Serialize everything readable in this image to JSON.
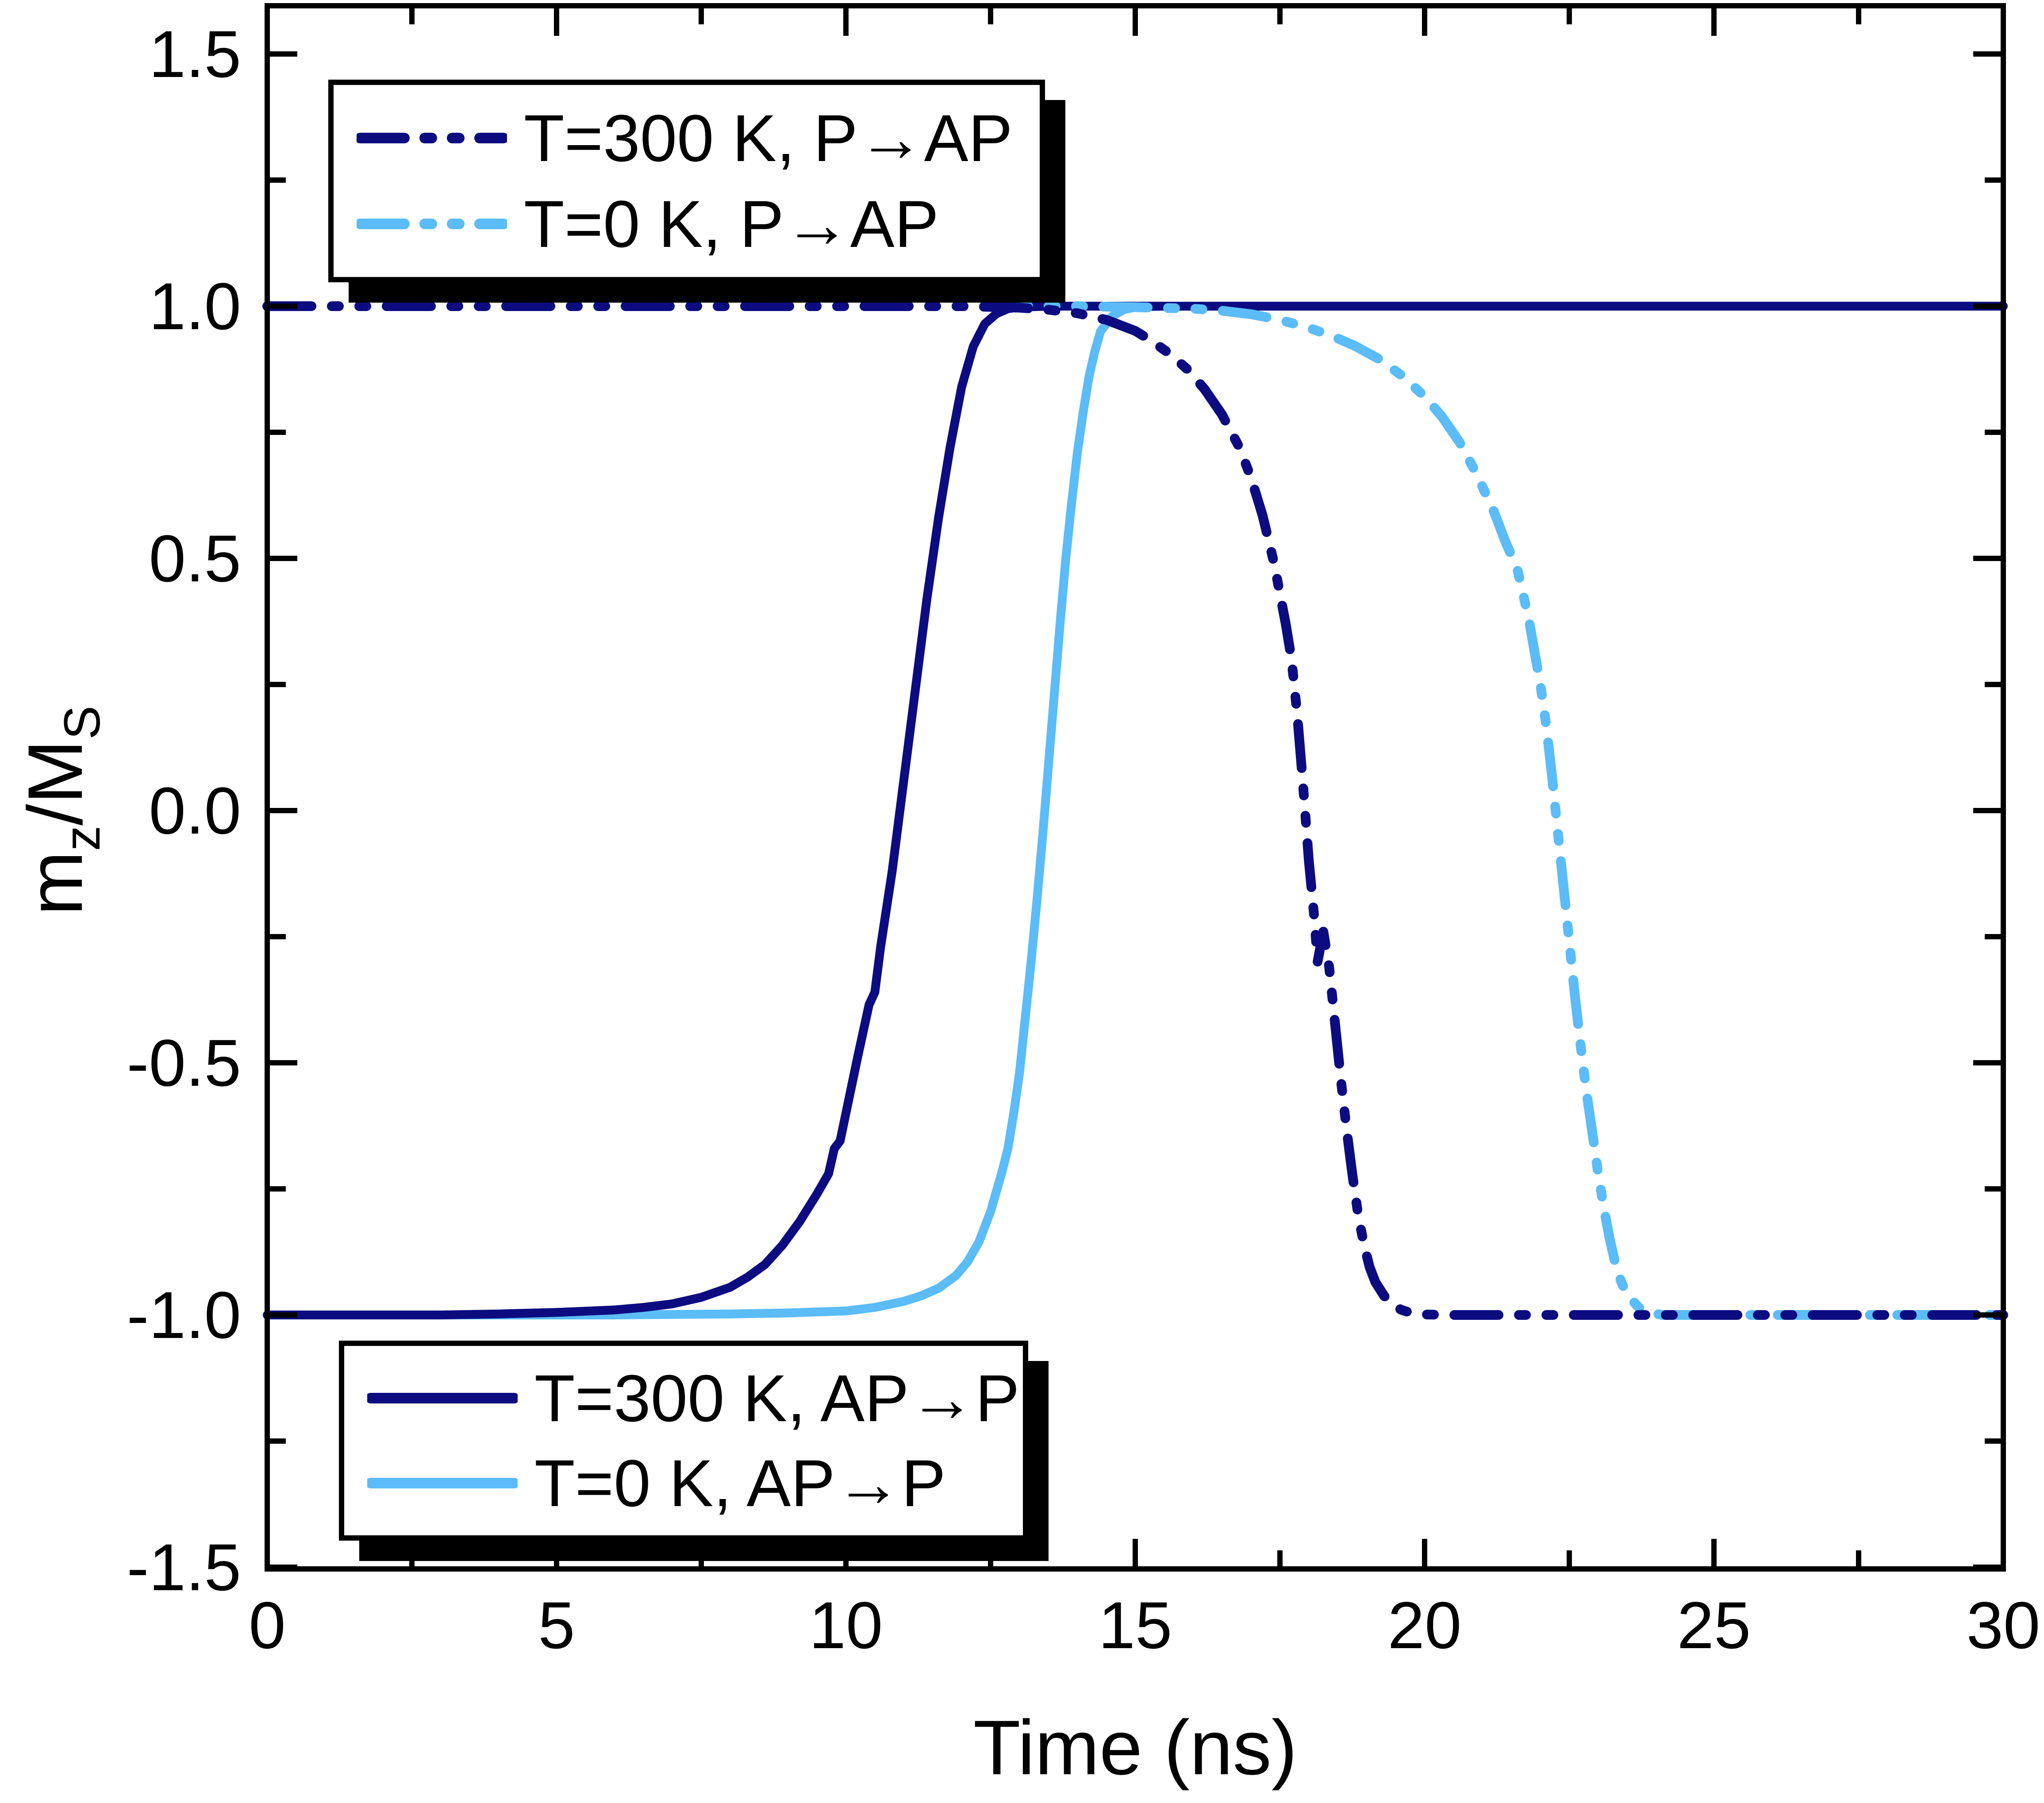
{
  "figure": {
    "background": "#ffffff"
  },
  "chart_data": {
    "type": "line",
    "title": "",
    "xlabel": "Time (ns)",
    "ylabel": "mz/MS",
    "ylabel_parts": [
      [
        "m",
        false
      ],
      [
        "z",
        true
      ],
      [
        "/M",
        false
      ],
      [
        "S",
        true
      ]
    ],
    "xlim": [
      0,
      30
    ],
    "ylim": [
      -1.5,
      1.5
    ],
    "grid": false,
    "legend_position": [
      "upper-left-inside",
      "lower-left-inside"
    ],
    "x_ticks": [
      0,
      5,
      10,
      15,
      20,
      25,
      30
    ],
    "x_tick_labels": [
      "0",
      "5",
      "10",
      "15",
      "20",
      "25",
      "30"
    ],
    "x_minor_ticks": [
      2.5,
      7.5,
      12.5,
      17.5,
      22.5,
      27.5
    ],
    "y_ticks": [
      1.5,
      1.0,
      0.5,
      0.0,
      -0.5,
      -1.0,
      -1.5
    ],
    "y_tick_labels": [
      "1.5",
      "1.0",
      "0.5",
      "0.0",
      "-0.5",
      "-1.0",
      "-1.5"
    ],
    "y_minor_ticks": [
      1.25,
      0.75,
      0.25,
      -0.25,
      -0.75,
      -1.25
    ],
    "colors": {
      "navy": "#0c0c80",
      "light_blue": "#5bbcf7",
      "axis": "#000000"
    },
    "legend_top": {
      "items": [
        {
          "label": "T=300 K, P→AP",
          "series": 0
        },
        {
          "label": "T=0 K, P→AP",
          "series": 1
        }
      ]
    },
    "legend_bottom": {
      "items": [
        {
          "label": "T=300 K, AP→P",
          "series": 2
        },
        {
          "label": "T=0 K, AP→P",
          "series": 3
        }
      ]
    },
    "series": [
      {
        "name": "T=300 K, P→AP",
        "color": "navy",
        "style": "dash-dot-dot",
        "points": [
          [
            0,
            1.0
          ],
          [
            4,
            1.0
          ],
          [
            8,
            1.0
          ],
          [
            10,
            1.0
          ],
          [
            12,
            1.0
          ],
          [
            13,
            0.997
          ],
          [
            13.5,
            0.993
          ],
          [
            14,
            0.986
          ],
          [
            14.5,
            0.973
          ],
          [
            15,
            0.951
          ],
          [
            15.3,
            0.93
          ],
          [
            15.6,
            0.905
          ],
          [
            15.9,
            0.875
          ],
          [
            16.2,
            0.835
          ],
          [
            16.5,
            0.785
          ],
          [
            16.8,
            0.72
          ],
          [
            17.0,
            0.66
          ],
          [
            17.2,
            0.585
          ],
          [
            17.4,
            0.49
          ],
          [
            17.6,
            0.37
          ],
          [
            17.7,
            0.3
          ],
          [
            17.8,
            0.19
          ],
          [
            17.9,
            0.05
          ],
          [
            18.0,
            -0.1
          ],
          [
            18.1,
            -0.22
          ],
          [
            18.15,
            -0.3
          ],
          [
            18.25,
            -0.24
          ],
          [
            18.35,
            -0.31
          ],
          [
            18.45,
            -0.42
          ],
          [
            18.55,
            -0.53
          ],
          [
            18.65,
            -0.63
          ],
          [
            18.75,
            -0.72
          ],
          [
            18.85,
            -0.8
          ],
          [
            18.95,
            -0.86
          ],
          [
            19.05,
            -0.905
          ],
          [
            19.15,
            -0.935
          ],
          [
            19.3,
            -0.962
          ],
          [
            19.45,
            -0.98
          ],
          [
            19.6,
            -0.99
          ],
          [
            19.8,
            -0.997
          ],
          [
            20,
            -0.999
          ],
          [
            20.5,
            -1.0
          ],
          [
            22,
            -1.0
          ],
          [
            25,
            -1.0
          ],
          [
            28,
            -1.0
          ],
          [
            30,
            -1.0
          ]
        ]
      },
      {
        "name": "T=0 K, P→AP",
        "color": "light_blue",
        "style": "dash-dot-dot",
        "points": [
          [
            0,
            1.0
          ],
          [
            4,
            1.0
          ],
          [
            8,
            1.0
          ],
          [
            12,
            1.0
          ],
          [
            14,
            1.0
          ],
          [
            15,
            0.998
          ],
          [
            16,
            0.995
          ],
          [
            16.5,
            0.991
          ],
          [
            17,
            0.984
          ],
          [
            17.5,
            0.973
          ],
          [
            18,
            0.957
          ],
          [
            18.4,
            0.941
          ],
          [
            18.8,
            0.921
          ],
          [
            19.2,
            0.896
          ],
          [
            19.6,
            0.863
          ],
          [
            20.0,
            0.821
          ],
          [
            20.3,
            0.781
          ],
          [
            20.6,
            0.731
          ],
          [
            20.9,
            0.667
          ],
          [
            21.2,
            0.592
          ],
          [
            21.4,
            0.532
          ],
          [
            21.6,
            0.48
          ],
          [
            21.8,
            0.38
          ],
          [
            22.0,
            0.25
          ],
          [
            22.1,
            0.17
          ],
          [
            22.2,
            0.07
          ],
          [
            22.3,
            -0.04
          ],
          [
            22.4,
            -0.15
          ],
          [
            22.5,
            -0.26
          ],
          [
            22.6,
            -0.37
          ],
          [
            22.7,
            -0.47
          ],
          [
            22.8,
            -0.56
          ],
          [
            22.9,
            -0.64
          ],
          [
            23.0,
            -0.72
          ],
          [
            23.1,
            -0.79
          ],
          [
            23.2,
            -0.85
          ],
          [
            23.3,
            -0.9
          ],
          [
            23.4,
            -0.935
          ],
          [
            23.5,
            -0.96
          ],
          [
            23.7,
            -0.985
          ],
          [
            23.9,
            -0.995
          ],
          [
            24.1,
            -1.0
          ],
          [
            25,
            -1.0
          ],
          [
            27,
            -1.0
          ],
          [
            30,
            -1.0
          ]
        ]
      },
      {
        "name": "T=300 K, AP→P",
        "color": "navy",
        "style": "solid",
        "points": [
          [
            0,
            -1.0
          ],
          [
            1,
            -1.0
          ],
          [
            2,
            -1.0
          ],
          [
            3,
            -1.0
          ],
          [
            4,
            -0.998
          ],
          [
            5,
            -0.995
          ],
          [
            6,
            -0.99
          ],
          [
            6.5,
            -0.985
          ],
          [
            7,
            -0.978
          ],
          [
            7.5,
            -0.965
          ],
          [
            8,
            -0.945
          ],
          [
            8.3,
            -0.925
          ],
          [
            8.6,
            -0.9
          ],
          [
            8.9,
            -0.862
          ],
          [
            9.2,
            -0.815
          ],
          [
            9.5,
            -0.76
          ],
          [
            9.7,
            -0.72
          ],
          [
            9.8,
            -0.67
          ],
          [
            9.9,
            -0.655
          ],
          [
            10.0,
            -0.6
          ],
          [
            10.2,
            -0.49
          ],
          [
            10.4,
            -0.385
          ],
          [
            10.5,
            -0.36
          ],
          [
            10.6,
            -0.27
          ],
          [
            10.8,
            -0.12
          ],
          [
            11.0,
            0.06
          ],
          [
            11.2,
            0.24
          ],
          [
            11.4,
            0.42
          ],
          [
            11.5,
            0.5
          ],
          [
            11.6,
            0.58
          ],
          [
            11.8,
            0.72
          ],
          [
            12.0,
            0.84
          ],
          [
            12.2,
            0.92
          ],
          [
            12.4,
            0.965
          ],
          [
            12.6,
            0.985
          ],
          [
            12.8,
            0.995
          ],
          [
            13,
            0.998
          ],
          [
            13.5,
            1.0
          ],
          [
            15,
            1.0
          ],
          [
            18,
            1.0
          ],
          [
            22,
            1.0
          ],
          [
            26,
            1.0
          ],
          [
            30,
            1.0
          ]
        ]
      },
      {
        "name": "T=0 K, AP→P",
        "color": "light_blue",
        "style": "solid",
        "points": [
          [
            0,
            -1.0
          ],
          [
            2,
            -1.0
          ],
          [
            4,
            -1.0
          ],
          [
            6,
            -1.0
          ],
          [
            8,
            -0.998
          ],
          [
            9,
            -0.996
          ],
          [
            10,
            -0.992
          ],
          [
            10.5,
            -0.985
          ],
          [
            11,
            -0.973
          ],
          [
            11.3,
            -0.962
          ],
          [
            11.6,
            -0.947
          ],
          [
            11.9,
            -0.922
          ],
          [
            12.1,
            -0.895
          ],
          [
            12.3,
            -0.855
          ],
          [
            12.5,
            -0.795
          ],
          [
            12.7,
            -0.715
          ],
          [
            12.8,
            -0.67
          ],
          [
            12.9,
            -0.6
          ],
          [
            13.0,
            -0.52
          ],
          [
            13.1,
            -0.41
          ],
          [
            13.2,
            -0.3
          ],
          [
            13.3,
            -0.18
          ],
          [
            13.4,
            -0.05
          ],
          [
            13.5,
            0.09
          ],
          [
            13.6,
            0.23
          ],
          [
            13.7,
            0.37
          ],
          [
            13.8,
            0.5
          ],
          [
            13.9,
            0.61
          ],
          [
            14.0,
            0.71
          ],
          [
            14.1,
            0.79
          ],
          [
            14.2,
            0.86
          ],
          [
            14.3,
            0.91
          ],
          [
            14.4,
            0.95
          ],
          [
            14.6,
            0.98
          ],
          [
            14.8,
            0.993
          ],
          [
            15.0,
            0.998
          ],
          [
            15.5,
            1.0
          ],
          [
            18,
            1.0
          ],
          [
            22,
            1.0
          ],
          [
            26,
            1.0
          ],
          [
            30,
            1.0
          ]
        ]
      }
    ]
  }
}
